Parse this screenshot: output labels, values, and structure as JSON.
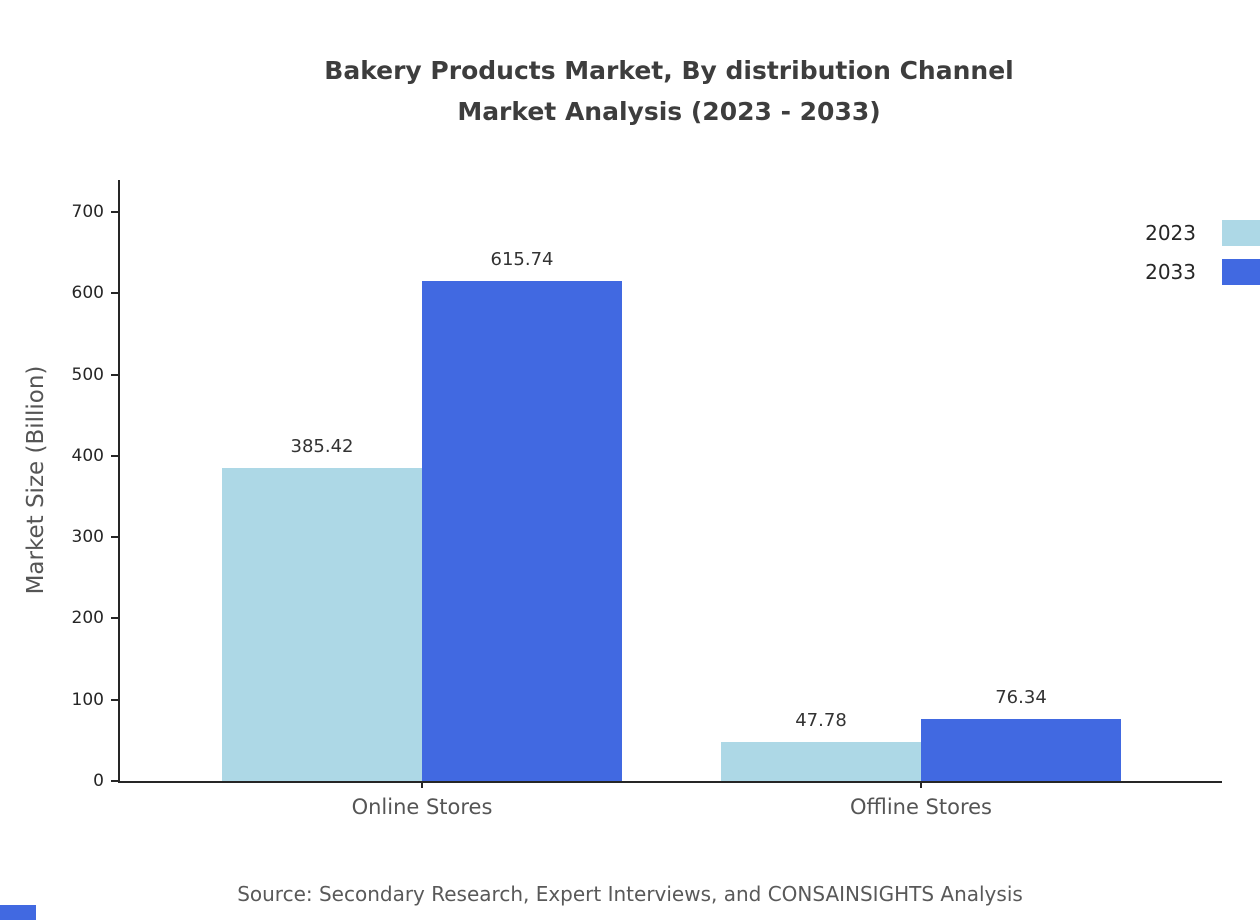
{
  "header": {
    "title_line1": "Bakery Products Market, By distribution Channel",
    "title_line2": "Market Analysis (2023 - 2033)"
  },
  "footer": {
    "source": "Source: Secondary Research, Expert Interviews, and CONSAINSIGHTS Analysis"
  },
  "chart_data": {
    "type": "bar",
    "title": "Bakery Products Market, By distribution Channel Market Analysis (2023 - 2033)",
    "categories": [
      "Online Stores",
      "Offline Stores"
    ],
    "series": [
      {
        "name": "2023",
        "color": "#ADD8E6",
        "values": [
          385.42,
          47.78
        ]
      },
      {
        "name": "2033",
        "color": "#4169E1",
        "values": [
          615.74,
          76.34
        ]
      }
    ],
    "xlabel": "",
    "ylabel": "Market Size (Billion)",
    "yticks": [
      0,
      100,
      200,
      300,
      400,
      500,
      600,
      700
    ],
    "ylim": [
      0,
      740
    ],
    "grid": false,
    "legend_position": "top-right"
  }
}
